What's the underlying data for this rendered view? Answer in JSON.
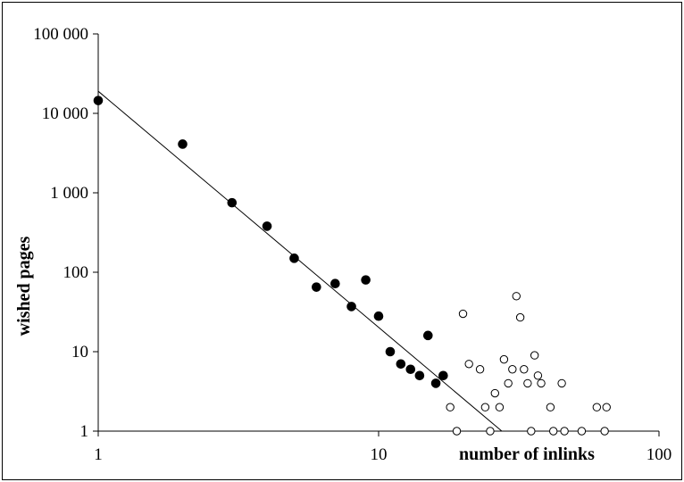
{
  "chart_data": {
    "type": "scatter",
    "title": "",
    "xlabel": "number of inlinks",
    "ylabel": "wished pages",
    "xscale": "log",
    "yscale": "log",
    "xlim": [
      1,
      100
    ],
    "ylim": [
      1,
      100000
    ],
    "grid": false,
    "legend": "none",
    "x_tick_labels": [
      "1",
      "10",
      "100"
    ],
    "y_tick_labels": [
      "1",
      "10",
      "100",
      "1 000",
      "10 000",
      "100 000"
    ],
    "series": [
      {
        "marker": "filled-circle",
        "points": [
          [
            1,
            14500
          ],
          [
            2,
            4100
          ],
          [
            3,
            750
          ],
          [
            4,
            380
          ],
          [
            5,
            150
          ],
          [
            6,
            65
          ],
          [
            7,
            72
          ],
          [
            8,
            37
          ],
          [
            9,
            80
          ],
          [
            10,
            28
          ],
          [
            11,
            10
          ],
          [
            12,
            7
          ],
          [
            13,
            6
          ],
          [
            14,
            5
          ],
          [
            15,
            16
          ],
          [
            16,
            4
          ],
          [
            17,
            5
          ]
        ]
      },
      {
        "marker": "open-circle",
        "points": [
          [
            18,
            2
          ],
          [
            19,
            1
          ],
          [
            20,
            30
          ],
          [
            21,
            7
          ],
          [
            23,
            6
          ],
          [
            24,
            2
          ],
          [
            25,
            1
          ],
          [
            26,
            3
          ],
          [
            27,
            2
          ],
          [
            28,
            8
          ],
          [
            29,
            4
          ],
          [
            30,
            6
          ],
          [
            31,
            50
          ],
          [
            32,
            27
          ],
          [
            33,
            6
          ],
          [
            34,
            4
          ],
          [
            35,
            1
          ],
          [
            36,
            9
          ],
          [
            37,
            5
          ],
          [
            38,
            4
          ],
          [
            41,
            2
          ],
          [
            42,
            1
          ],
          [
            45,
            4
          ],
          [
            46,
            1
          ],
          [
            53,
            1
          ],
          [
            60,
            2
          ],
          [
            64,
            1
          ],
          [
            65,
            2
          ]
        ]
      },
      {
        "type": "line",
        "marker": "none",
        "points": [
          [
            1,
            19000
          ],
          [
            27.5,
            1
          ]
        ]
      }
    ],
    "colors": {
      "ink": "#000000",
      "background": "#ffffff"
    }
  }
}
